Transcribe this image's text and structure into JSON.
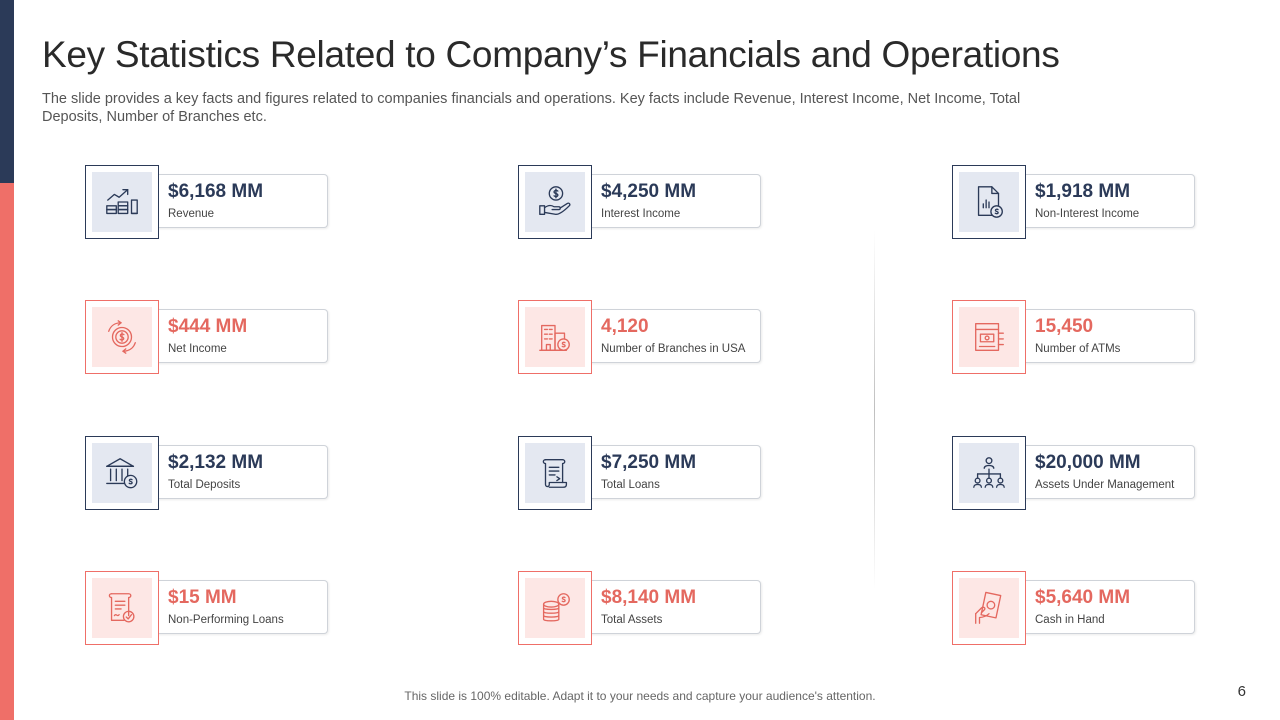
{
  "slide": {
    "title": "Key Statistics Related to Company’s Financials and Operations",
    "subtitle": "The slide provides a key facts and figures related to companies financials and operations. Key facts include Revenue, Interest Income, Net Income, Total Deposits, Number of Branches etc.",
    "footer": "This slide is 100% editable. Adapt it to your needs and capture your audience's attention.",
    "page_number": "6"
  },
  "colors": {
    "navy": "#2b3a58",
    "coral": "#ef6f68",
    "navy_tint": "#e4e8f1",
    "coral_tint": "#fde7e5"
  },
  "stats": [
    {
      "value": "$6,168 MM",
      "label": "Revenue",
      "icon": "revenue-growth-icon",
      "color": "navy"
    },
    {
      "value": "$4,250 MM",
      "label": "Interest Income",
      "icon": "dollar-hand-icon",
      "color": "navy"
    },
    {
      "value": "$1,918 MM",
      "label": "Non-Interest Income",
      "icon": "document-dollar-icon",
      "color": "navy"
    },
    {
      "value": "$444 MM",
      "label": "Net Income",
      "icon": "dollar-gear-icon",
      "color": "coral"
    },
    {
      "value": "4,120",
      "label": "Number of Branches in USA",
      "icon": "bank-building-icon",
      "color": "coral"
    },
    {
      "value": "15,450",
      "label": "Number of ATMs",
      "icon": "atm-icon",
      "color": "coral"
    },
    {
      "value": "$2,132 MM",
      "label": "Total Deposits",
      "icon": "bank-deposit-icon",
      "color": "navy"
    },
    {
      "value": "$7,250 MM",
      "label": "Total Loans",
      "icon": "loan-document-icon",
      "color": "navy"
    },
    {
      "value": "$20,000 MM",
      "label": "Assets Under Management",
      "icon": "hierarchy-icon",
      "color": "navy"
    },
    {
      "value": "$15 MM",
      "label": "Non-Performing Loans",
      "icon": "contract-icon",
      "color": "coral"
    },
    {
      "value": "$8,140 MM",
      "label": "Total Assets",
      "icon": "coin-stack-icon",
      "color": "coral"
    },
    {
      "value": "$5,640 MM",
      "label": "Cash in Hand",
      "icon": "cash-hand-icon",
      "color": "coral"
    }
  ]
}
